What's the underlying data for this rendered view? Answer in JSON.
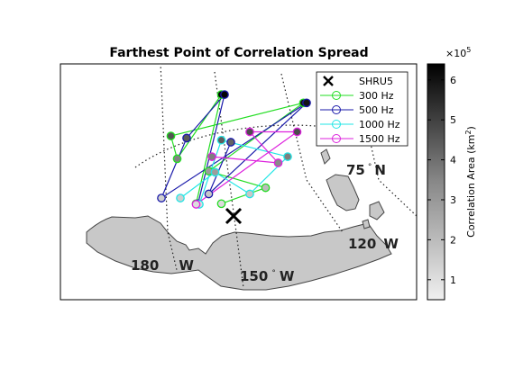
{
  "chart_data": {
    "type": "scatter",
    "title": "Farthest Point of Correlation Spread",
    "map": {
      "lat_label": "75",
      "lat_dir": "N",
      "lon_labels": [
        {
          "value": "180",
          "dir": "W"
        },
        {
          "value": "150",
          "dir": "W"
        },
        {
          "value": "120",
          "dir": "W"
        }
      ],
      "degree_symbol": "°"
    },
    "marker": {
      "name": "SHRU5",
      "symbol": "x",
      "color": "#000000"
    },
    "series": [
      {
        "name": "300 Hz",
        "color": "#22dd22",
        "points": [
          [
            0.75,
            1.03
          ],
          [
            1.15,
            6.3
          ],
          [
            0.45,
            3.2
          ],
          [
            0.35,
            4.3
          ],
          [
            2.45,
            5.9
          ],
          [
            0.95,
            2.6
          ],
          [
            1.85,
            1.8
          ],
          [
            1.15,
            1.03
          ]
        ]
      },
      {
        "name": "500 Hz",
        "color": "#1a1aaa",
        "points": [
          [
            0.78,
            1.03
          ],
          [
            1.2,
            6.3
          ],
          [
            0.6,
            4.2
          ],
          [
            0.2,
            1.3
          ],
          [
            2.5,
            5.9
          ],
          [
            0.95,
            1.5
          ],
          [
            1.3,
            4.0
          ]
        ]
      },
      {
        "name": "1000 Hz",
        "color": "#22e6e6",
        "points": [
          [
            0.8,
            1.0
          ],
          [
            1.15,
            4.1
          ],
          [
            2.2,
            3.3
          ],
          [
            1.6,
            1.5
          ],
          [
            1.05,
            2.55
          ],
          [
            0.5,
            1.3
          ]
        ]
      },
      {
        "name": "1500 Hz",
        "color": "#dd22dd",
        "points": [
          [
            0.75,
            1.0
          ],
          [
            2.35,
            4.5
          ],
          [
            1.6,
            4.5
          ],
          [
            2.05,
            3.0
          ],
          [
            1.0,
            3.3
          ]
        ]
      }
    ],
    "colorbar": {
      "label": "Correlation Area (km",
      "label_sup": "2",
      "label_end": ")",
      "multiplier": "×10",
      "multiplier_exp": "5",
      "range": [
        0.5,
        6.4
      ],
      "ticks": [
        "1",
        "2",
        "3",
        "4",
        "5",
        "6"
      ]
    }
  }
}
